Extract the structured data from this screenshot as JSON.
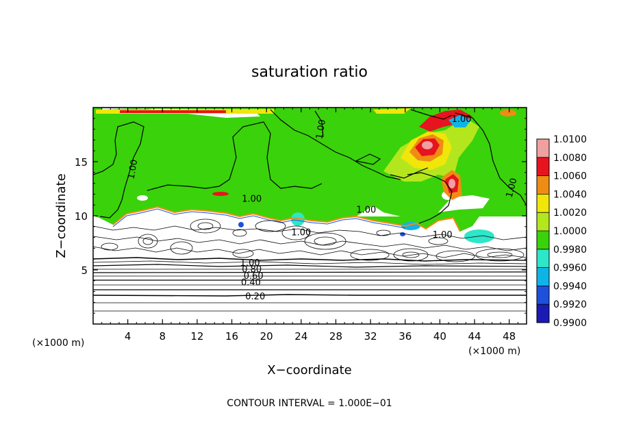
{
  "chart_data": {
    "type": "heatmap",
    "title": "saturation ratio",
    "xlabel": "X−coordinate",
    "ylabel": "Z−coordinate",
    "x_unit_left": "(×1000 m)",
    "x_unit_right": "(×1000 m)",
    "xlim": [
      0,
      50
    ],
    "ylim": [
      0,
      20
    ],
    "x_ticks": [
      4,
      8,
      12,
      16,
      20,
      24,
      28,
      32,
      36,
      40,
      44,
      48
    ],
    "y_ticks": [
      5,
      10,
      15
    ],
    "footer": "CONTOUR INTERVAL = 1.000E−01",
    "colorbar": {
      "levels": [
        "0.9900",
        "0.9920",
        "0.9940",
        "0.9960",
        "0.9980",
        "1.0000",
        "1.0020",
        "1.0040",
        "1.0060",
        "1.0080",
        "1.0100"
      ],
      "colors": [
        "#5a0f8c",
        "#1a1ab4",
        "#1e50dc",
        "#0fb4e6",
        "#2ee6c8",
        "#3ad20a",
        "#b4e61e",
        "#f0e60a",
        "#f08c14",
        "#e6141e",
        "#f0a0a0"
      ]
    },
    "contour_labels": [
      {
        "text": "1.00",
        "x": 4.5,
        "y": 14.3,
        "angle": -80
      },
      {
        "text": "1.00",
        "x": 18.3,
        "y": 11.6,
        "angle": 0
      },
      {
        "text": "1.00",
        "x": 26.2,
        "y": 18.0,
        "angle": -80
      },
      {
        "text": "1.00",
        "x": 42.5,
        "y": 19.0,
        "angle": 0
      },
      {
        "text": "1.00",
        "x": 48.2,
        "y": 12.6,
        "angle": -75
      },
      {
        "text": "1.00",
        "x": 31.5,
        "y": 10.6,
        "angle": 0
      },
      {
        "text": "1.00",
        "x": 24.0,
        "y": 8.5,
        "angle": 0
      },
      {
        "text": "1.00",
        "x": 40.3,
        "y": 8.3,
        "angle": 0
      },
      {
        "text": "1.00",
        "x": 18.1,
        "y": 5.7,
        "angle": 0
      },
      {
        "text": "0.80",
        "x": 18.3,
        "y": 5.1,
        "angle": 0
      },
      {
        "text": "0.60",
        "x": 18.5,
        "y": 4.5,
        "angle": 0
      },
      {
        "text": "0.40",
        "x": 18.2,
        "y": 3.9,
        "angle": 0
      },
      {
        "text": "0.20",
        "x": 18.7,
        "y": 2.6,
        "angle": 0
      }
    ]
  }
}
